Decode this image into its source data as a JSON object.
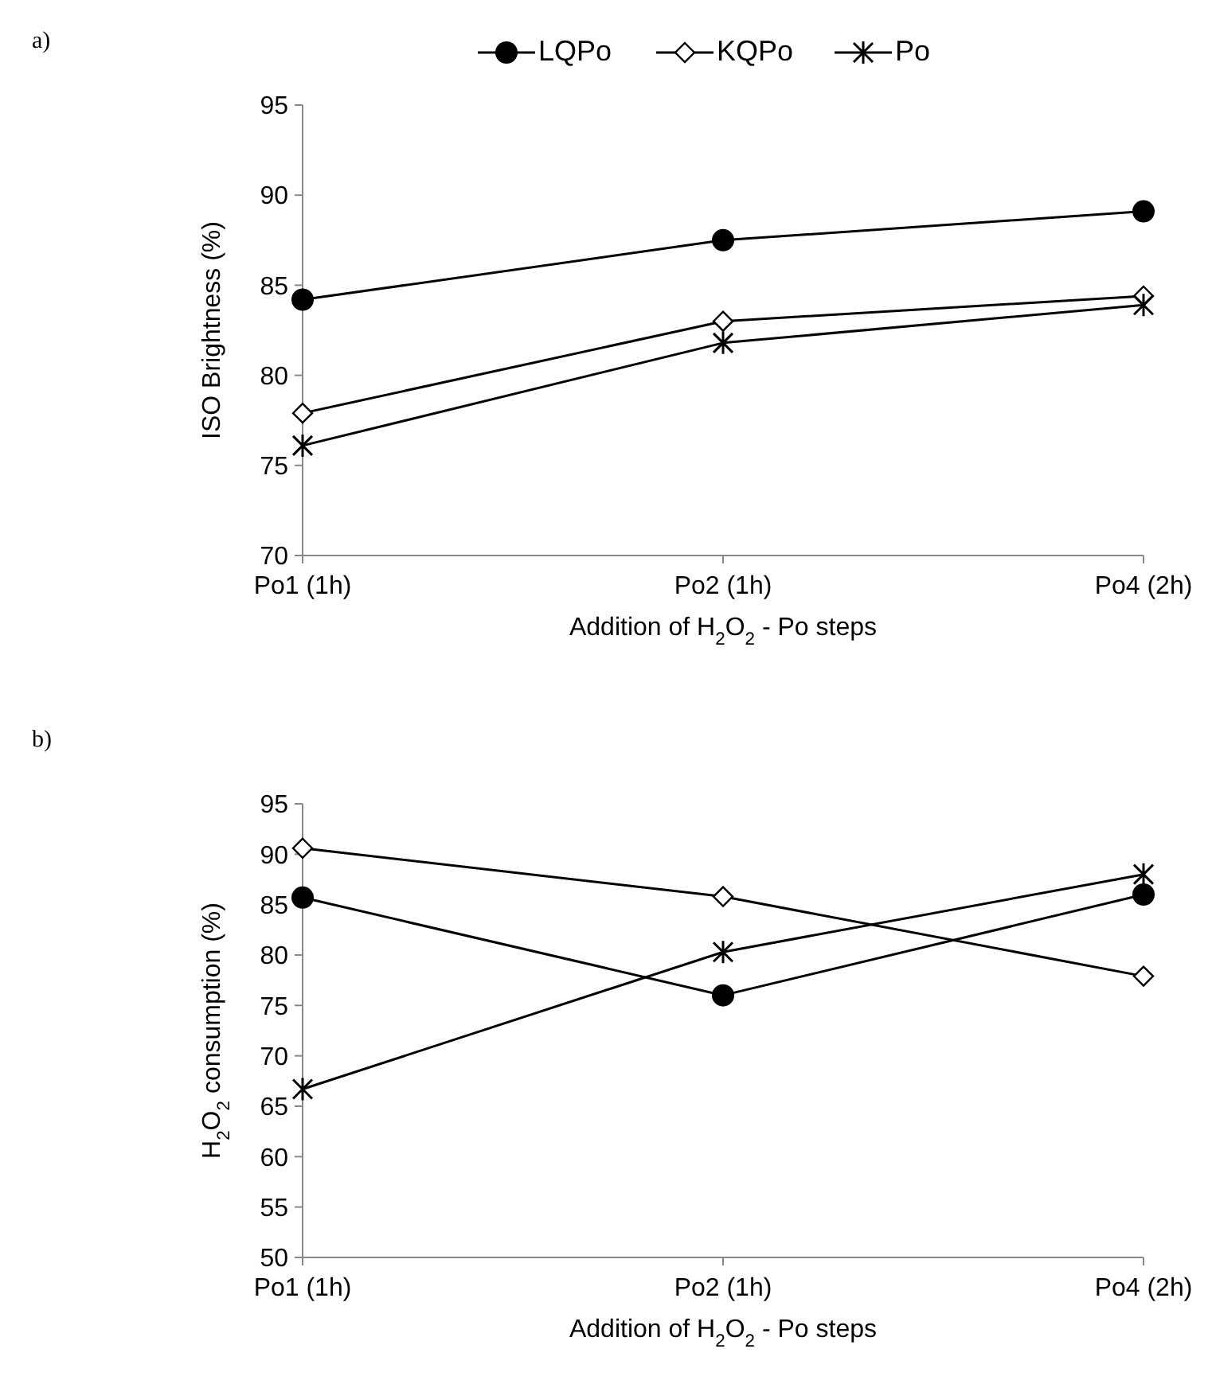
{
  "chart_data": [
    {
      "type": "line",
      "categories": [
        "Po1 (1h)",
        "Po2 (1h)",
        "Po4 (2h)"
      ],
      "xlabel": "Addition of H$_{2}$O$_{2}$ - Po steps",
      "ylabel": "ISO Brightness (%)",
      "ylim": [
        70,
        95
      ],
      "yticks": [
        70,
        75,
        80,
        85,
        90,
        95
      ],
      "grid": false,
      "legend": "top",
      "annotations": [
        "a)"
      ],
      "series": [
        {
          "name": "LQPo",
          "color": "#000000",
          "marker": "circle",
          "values": [
            84.2,
            87.5,
            89.1
          ]
        },
        {
          "name": "KQPo",
          "color": "#000000",
          "marker": "diamond",
          "values": [
            77.9,
            83.0,
            84.4
          ]
        },
        {
          "name": "Po",
          "color": "#000000",
          "marker": "cross",
          "values": [
            76.1,
            81.8,
            83.9
          ]
        }
      ]
    },
    {
      "type": "line",
      "categories": [
        "Po1 (1h)",
        "Po2 (1h)",
        "Po4 (2h)"
      ],
      "xlabel": "Addition of H$_{2}$O$_{2}$ - Po steps",
      "ylabel": "H$_{2}$O$_{2}$ consumption (%)",
      "ylim": [
        50,
        95
      ],
      "yticks": [
        50,
        55,
        60,
        65,
        70,
        75,
        80,
        85,
        90,
        95
      ],
      "grid": false,
      "legend": false,
      "annotations": [
        "b)"
      ],
      "series": [
        {
          "color": "#000000",
          "marker": "circle",
          "values": [
            85.7,
            76.0,
            86.0
          ]
        },
        {
          "color": "#000000",
          "marker": "diamond",
          "values": [
            90.6,
            85.8,
            77.9
          ]
        },
        {
          "color": "#000000",
          "marker": "cross",
          "values": [
            66.7,
            80.3,
            88.0
          ]
        }
      ]
    }
  ]
}
